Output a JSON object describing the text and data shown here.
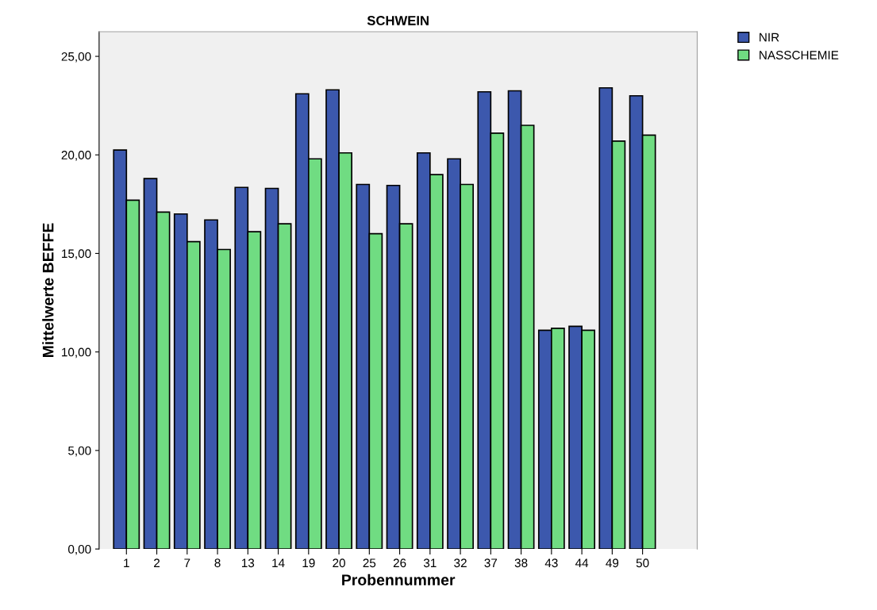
{
  "chart_data": {
    "type": "bar",
    "title": "SCHWEIN",
    "xlabel": "Probennummer",
    "ylabel": "Mittelwerte BEFFE",
    "categories": [
      "1",
      "2",
      "7",
      "8",
      "13",
      "14",
      "19",
      "20",
      "25",
      "26",
      "31",
      "32",
      "37",
      "38",
      "43",
      "44",
      "49",
      "50"
    ],
    "series": [
      {
        "name": "NIR",
        "color": "#3c58ad",
        "values": [
          20.25,
          18.8,
          17.0,
          16.7,
          18.35,
          18.3,
          23.1,
          23.3,
          18.5,
          18.45,
          20.1,
          19.8,
          23.2,
          23.25,
          11.1,
          11.3,
          23.4,
          23.0
        ]
      },
      {
        "name": "NASSCHEMIE",
        "color": "#70dc82",
        "values": [
          17.7,
          17.1,
          15.6,
          15.2,
          16.1,
          16.5,
          19.8,
          20.1,
          16.0,
          16.5,
          19.0,
          18.5,
          21.1,
          21.5,
          11.2,
          11.1,
          20.7,
          21.0
        ]
      }
    ],
    "ylim": [
      0,
      26.25
    ],
    "yticks": [
      {
        "value": 0,
        "label": "0,00"
      },
      {
        "value": 5,
        "label": "5,00"
      },
      {
        "value": 10,
        "label": "10,00"
      },
      {
        "value": 15,
        "label": "15,00"
      },
      {
        "value": 20,
        "label": "20,00"
      },
      {
        "value": 25,
        "label": "25,00"
      }
    ],
    "grid": false,
    "legend": "top right"
  }
}
